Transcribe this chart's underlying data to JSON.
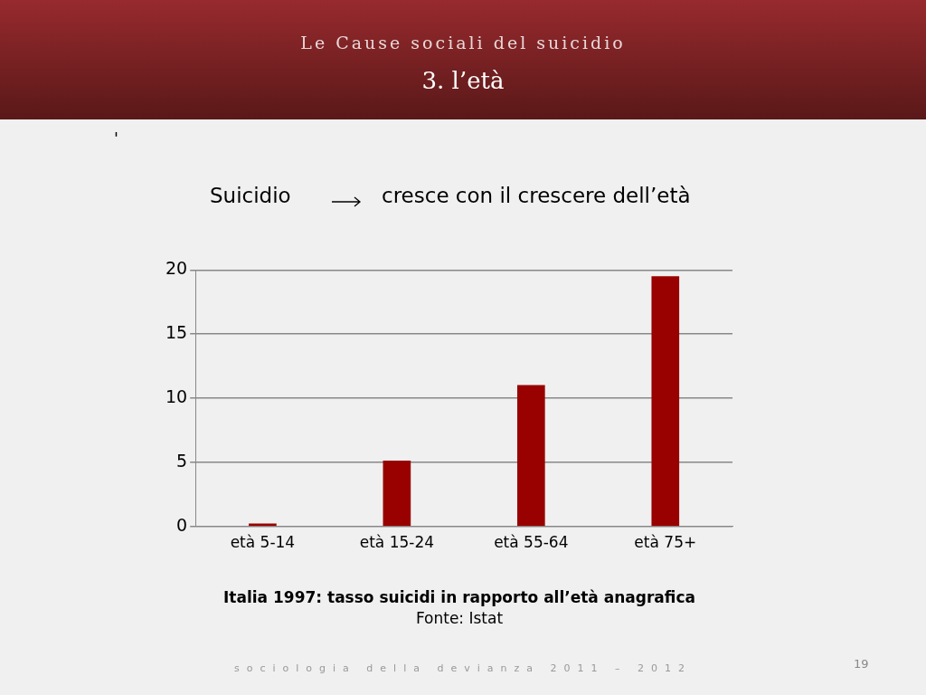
{
  "chart_data": {
    "type": "bar",
    "title": "Le Cause sociali del suicidio",
    "subtitle": "3. l’età",
    "categories": [
      "età 5-14",
      "età 15-24",
      "età 55-64",
      "età 75+"
    ],
    "values": [
      0.2,
      5.1,
      11.0,
      19.5
    ],
    "color": "#990000",
    "ylim": [
      0,
      20
    ],
    "yticks": [
      0,
      5,
      10,
      15,
      20
    ],
    "grid": "y",
    "annotations": [
      "'",
      "Suicidio",
      "cresce con il crescere dell’età",
      "Italia 1997: tasso suicidi in rapporto all’età anagrafica",
      "Fonte: Istat",
      "sociologia della devianza 2011 – 2012",
      "19"
    ]
  }
}
